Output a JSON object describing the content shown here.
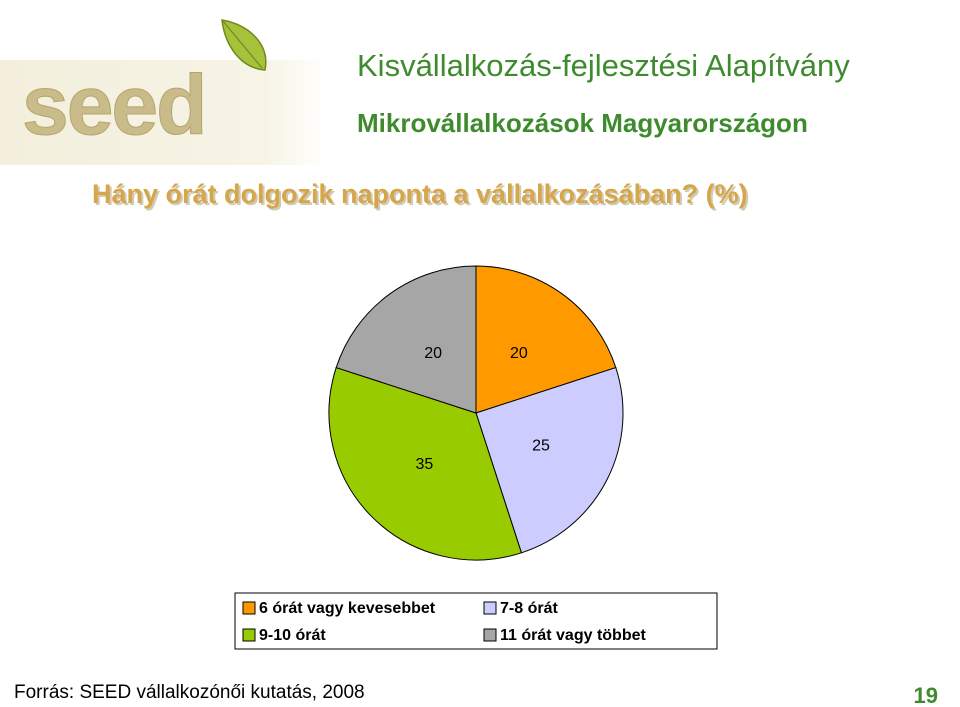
{
  "logo": "seed",
  "header": {
    "title": "Kisvállalkozás-fejlesztési Alapítvány",
    "subtitle": "Mikrovállalkozások Magyarországon"
  },
  "chart_data": {
    "type": "pie",
    "title": "Hány órát dolgozik naponta a vállalkozásában? (%)",
    "categories": [
      "6 órát vagy kevesebbet",
      "7-8 órát",
      "9-10 órát",
      "11 órát vagy többet"
    ],
    "values": [
      20,
      25,
      35,
      20
    ],
    "colors": [
      "#ff9900",
      "#ccccff",
      "#99cc00",
      "#a6a6a6"
    ]
  },
  "footer": {
    "source": "Forrás: SEED vállalkozónői kutatás, 2008",
    "page": "19"
  }
}
